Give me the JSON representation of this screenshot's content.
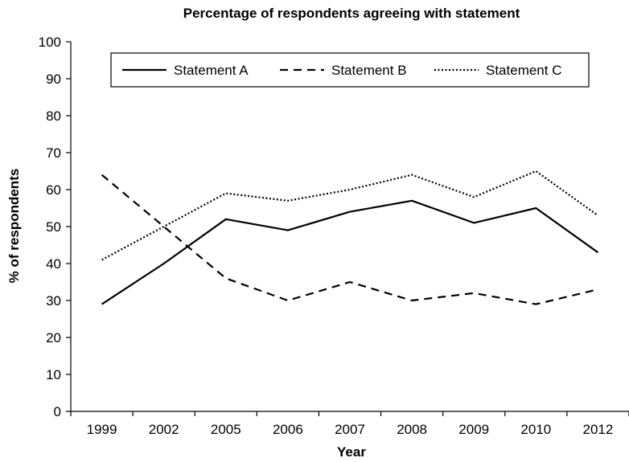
{
  "chart_data": {
    "type": "line",
    "title": "Percentage of respondents agreeing with statement",
    "xlabel": "Year",
    "ylabel": "% of respondents",
    "categories": [
      "1999",
      "2002",
      "2005",
      "2006",
      "2007",
      "2008",
      "2009",
      "2010",
      "2012"
    ],
    "ylim": [
      0,
      100
    ],
    "yticks": [
      0,
      10,
      20,
      30,
      40,
      50,
      60,
      70,
      80,
      90,
      100
    ],
    "grid": false,
    "legend_position": "top",
    "series": [
      {
        "name": "Statement A",
        "style": "solid",
        "values": [
          29,
          40,
          52,
          49,
          54,
          57,
          51,
          55,
          43
        ]
      },
      {
        "name": "Statement B",
        "style": "dashed",
        "values": [
          64,
          50,
          36,
          30,
          35,
          30,
          32,
          29,
          33
        ]
      },
      {
        "name": "Statement C",
        "style": "dotted",
        "values": [
          41,
          50,
          59,
          57,
          60,
          64,
          58,
          65,
          53
        ]
      }
    ]
  },
  "colors": {
    "line": "#000000",
    "background": "#ffffff"
  }
}
